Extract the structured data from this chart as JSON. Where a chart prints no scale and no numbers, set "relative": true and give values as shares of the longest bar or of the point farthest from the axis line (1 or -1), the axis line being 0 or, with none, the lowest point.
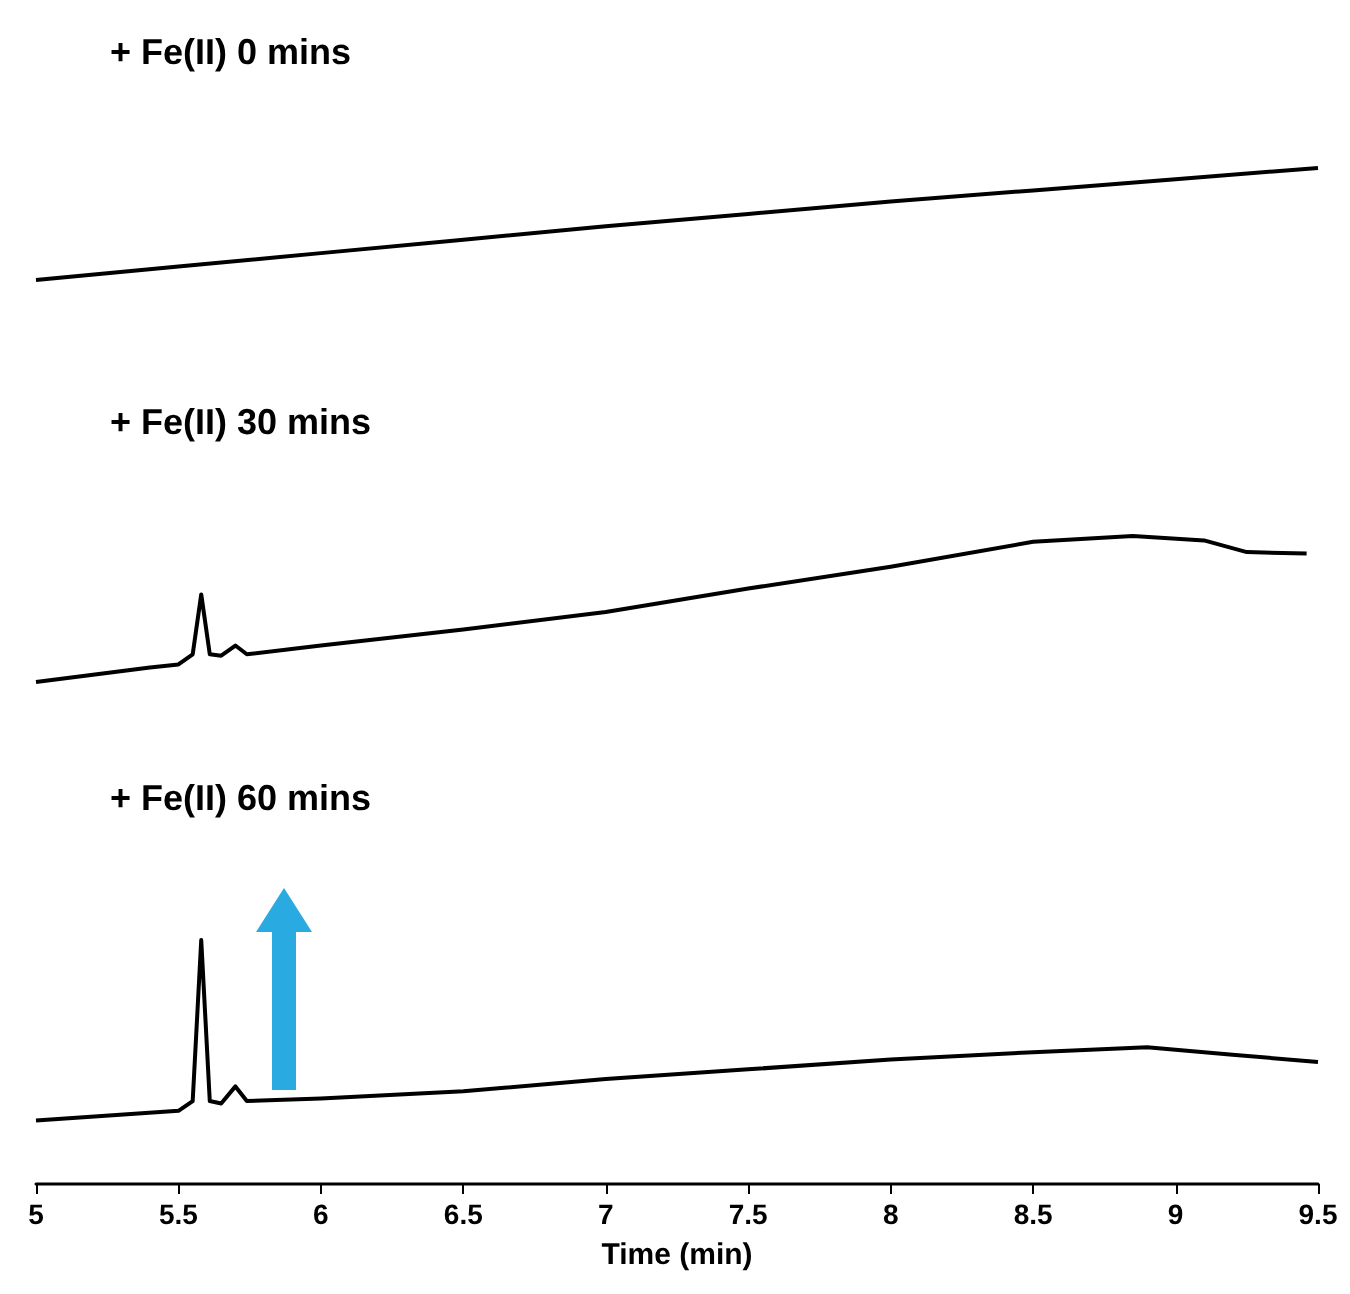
{
  "chart_data": [
    {
      "type": "line",
      "title": "+ Fe(II) 0 mins",
      "relative": true,
      "xlim": [
        5,
        9.5
      ],
      "tick_labels": false,
      "marker": "none",
      "line_style": "solid",
      "series": [
        {
          "color": "#000000",
          "x": [
            5,
            5.5,
            6,
            6.5,
            7,
            7.5,
            8,
            8.5,
            9,
            9.5
          ],
          "values": [
            0,
            0.12,
            0.24,
            0.36,
            0.48,
            0.59,
            0.7,
            0.8,
            0.9,
            1
          ]
        }
      ]
    },
    {
      "type": "line",
      "title": "+ Fe(II) 30 mins",
      "relative": true,
      "xlim": [
        5,
        9.5
      ],
      "tick_labels": false,
      "marker": "none",
      "line_style": "solid",
      "series": [
        {
          "color": "#000000",
          "x": [
            5,
            5.2,
            5.4,
            5.5,
            5.55,
            5.58,
            5.61,
            5.65,
            5.7,
            5.74,
            6,
            6.5,
            7,
            7.5,
            8,
            8.5,
            8.85,
            9.1,
            9.25,
            9.46
          ],
          "values": [
            0,
            0.05,
            0.1,
            0.12,
            0.19,
            0.6,
            0.19,
            0.18,
            0.25,
            0.19,
            0.25,
            0.36,
            0.48,
            0.64,
            0.79,
            0.96,
            1,
            0.97,
            0.89,
            0.88
          ]
        }
      ]
    },
    {
      "type": "line",
      "title": "+ Fe(II) 60 mins",
      "relative": true,
      "xlim": [
        5,
        9.5
      ],
      "xticks": [
        5,
        5.5,
        6,
        6.5,
        7,
        7.5,
        8,
        8.5,
        9,
        9.5
      ],
      "xlabel": "Time (min)",
      "tick_labels": "x",
      "marker": "none",
      "line_style": "solid",
      "series": [
        {
          "color": "#000000",
          "x": [
            5,
            5.5,
            5.55,
            5.58,
            5.61,
            5.65,
            5.7,
            5.74,
            6,
            6.5,
            7,
            7.5,
            8,
            8.5,
            8.9,
            9.2,
            9.5
          ],
          "values": [
            0.26,
            0.3,
            0.34,
            1,
            0.34,
            0.33,
            0.4,
            0.34,
            0.35,
            0.38,
            0.43,
            0.47,
            0.51,
            0.54,
            0.56,
            0.53,
            0.5
          ]
        }
      ]
    }
  ]
}
